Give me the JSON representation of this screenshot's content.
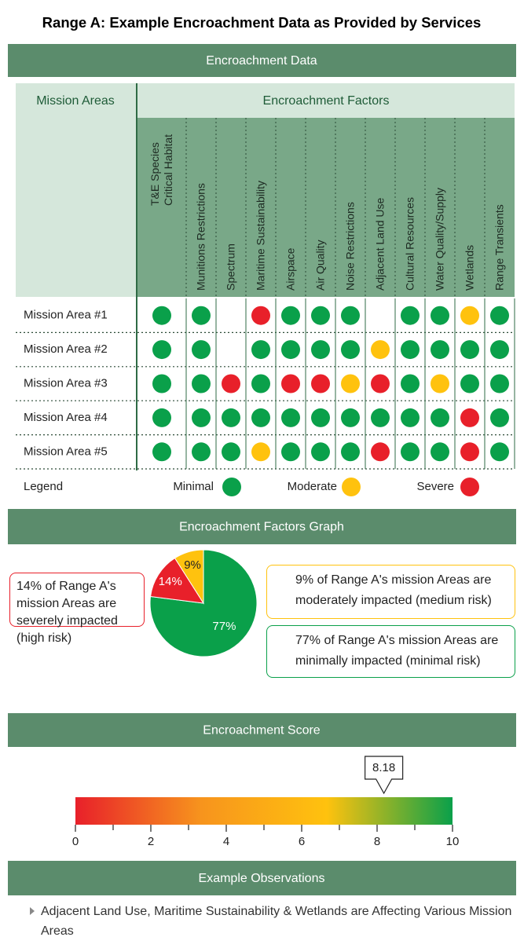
{
  "title": "Range A: Example Encroachment Data as Provided by Services",
  "table": {
    "heading": "Encroachment Data",
    "row_heading": "Mission Areas",
    "column_heading": "Encroachment Factors",
    "columns": [
      "T&E Species Critical Habitat",
      "Munitions Restrictions",
      "Spectrum",
      "Maritime Sustainability",
      "Airspace",
      "Air Quality",
      "Noise Restrictions",
      "Adjacent Land Use",
      "Cultural Resources",
      "Water Quality/Supply",
      "Wetlands",
      "Range Transients"
    ],
    "rows": [
      {
        "name": "Mission Area #1",
        "levels": [
          0,
          0,
          null,
          2,
          0,
          0,
          0,
          null,
          0,
          0,
          1,
          0
        ]
      },
      {
        "name": "Mission Area #2",
        "levels": [
          0,
          0,
          null,
          0,
          0,
          0,
          0,
          1,
          0,
          0,
          0,
          0
        ]
      },
      {
        "name": "Mission Area #3",
        "levels": [
          0,
          0,
          2,
          0,
          2,
          2,
          1,
          2,
          0,
          1,
          0,
          0
        ]
      },
      {
        "name": "Mission Area #4",
        "levels": [
          0,
          0,
          0,
          0,
          0,
          0,
          0,
          0,
          0,
          0,
          2,
          0
        ]
      },
      {
        "name": "Mission Area #5",
        "levels": [
          0,
          0,
          0,
          1,
          0,
          0,
          0,
          2,
          0,
          0,
          2,
          0
        ]
      }
    ]
  },
  "legend": {
    "label": "Legend",
    "items": [
      {
        "name": "Minimal",
        "color": "#0aa04a"
      },
      {
        "name": "Moderate",
        "color": "#ffc20e"
      },
      {
        "name": "Severe",
        "color": "#e8202a"
      }
    ]
  },
  "graph_heading": "Encroachment Factors Graph",
  "score_heading": "Encroachment Score",
  "chart_data": [
    {
      "type": "pie",
      "values": [
        77,
        14,
        9
      ],
      "value_labels": [
        "77%",
        "14%",
        "9%"
      ],
      "colors": [
        "#0aa04a",
        "#e8202a",
        "#ffc20e"
      ],
      "annotations": [
        {
          "text": "14% of Range A's mission Areas are severely impacted (high risk)",
          "color": "#e8202a"
        },
        {
          "text": "9% of Range A's mission Areas are moderately impacted (medium risk)",
          "color": "#ffc20e"
        },
        {
          "text": "77% of Range A's mission Areas are minimally impacted (minimal risk)",
          "color": "#0aa04a"
        }
      ]
    },
    {
      "type": "gauge",
      "value": 8.18,
      "xlim": [
        0,
        10
      ],
      "xticks": [
        0,
        2,
        4,
        6,
        8,
        10
      ],
      "minor_xticks": [
        1,
        3,
        5,
        7,
        9
      ],
      "colors": [
        "#e8202a",
        "#f7941d",
        "#ffc20e",
        "#0aa04a"
      ]
    }
  ],
  "observations": {
    "heading": "Example Observations",
    "items": [
      "Adjacent Land Use, Maritime Sustainability & Wetlands are Affecting Various Mission Areas"
    ]
  }
}
